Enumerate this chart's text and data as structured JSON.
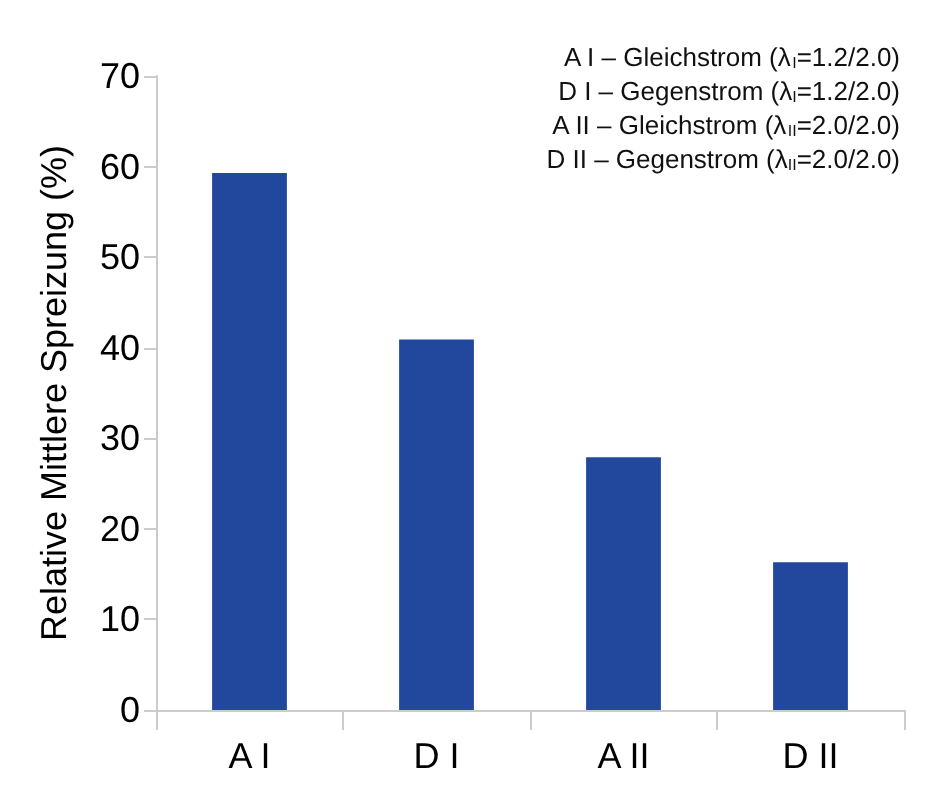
{
  "chart_data": {
    "type": "bar",
    "ylabel": "Relative Mittlere Spreizung (%)",
    "categories": [
      "A I",
      "D I",
      "A II",
      "D II"
    ],
    "values": [
      59.3,
      40.9,
      27.9,
      16.3
    ],
    "color": "#21489c",
    "ylim": [
      0,
      70
    ],
    "yticks": [
      0,
      10,
      20,
      30,
      40,
      50,
      60,
      70
    ],
    "grid": false,
    "annotations": [
      "A I – Gleichstrom (λ$_{I}$=1.2/2.0)",
      "D I – Gegenstrom (λ$_{I}$=1.2/2.0)",
      "A II – Gleichstrom (λ$_{II}$=2.0/2.0)",
      "D II – Gegenstrom (λ$_{II}$=2.0/2.0)"
    ]
  }
}
